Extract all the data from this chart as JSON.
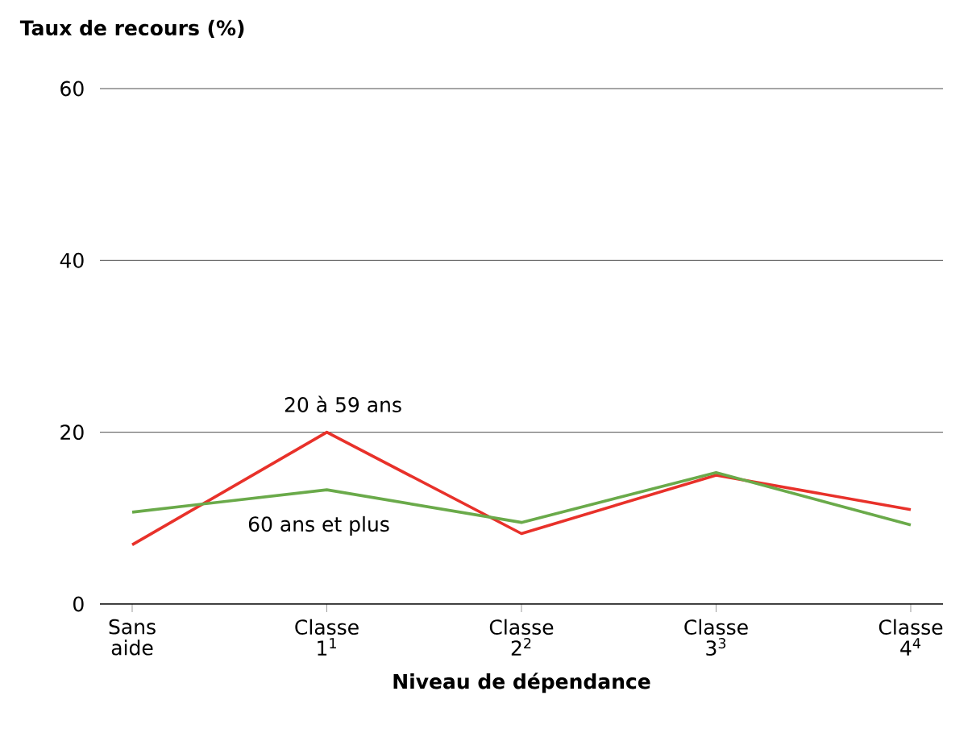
{
  "chart_data": {
    "type": "line",
    "ylabel": "Taux de recours (%)",
    "xlabel": "Niveau de dépendance",
    "categories": [
      "Sans aide",
      "Classe 1$^{1}$",
      "Classe 2$^{2}$",
      "Classe 3$^{3}$",
      "Classe 4$^{4}$"
    ],
    "series": [
      {
        "name": "20 à 59 ans",
        "color": "#e8312a",
        "values": [
          6.9,
          20,
          8.2,
          15,
          11
        ]
      },
      {
        "name": "60 ans et plus",
        "color": "#6aaa4a",
        "values": [
          10.7,
          13.3,
          9.5,
          15.3,
          9.2
        ]
      }
    ],
    "ylim": [
      0,
      60
    ],
    "yticks": [
      0,
      20,
      40,
      60
    ],
    "grid": "y",
    "marker": "none",
    "line_style": "solid"
  }
}
